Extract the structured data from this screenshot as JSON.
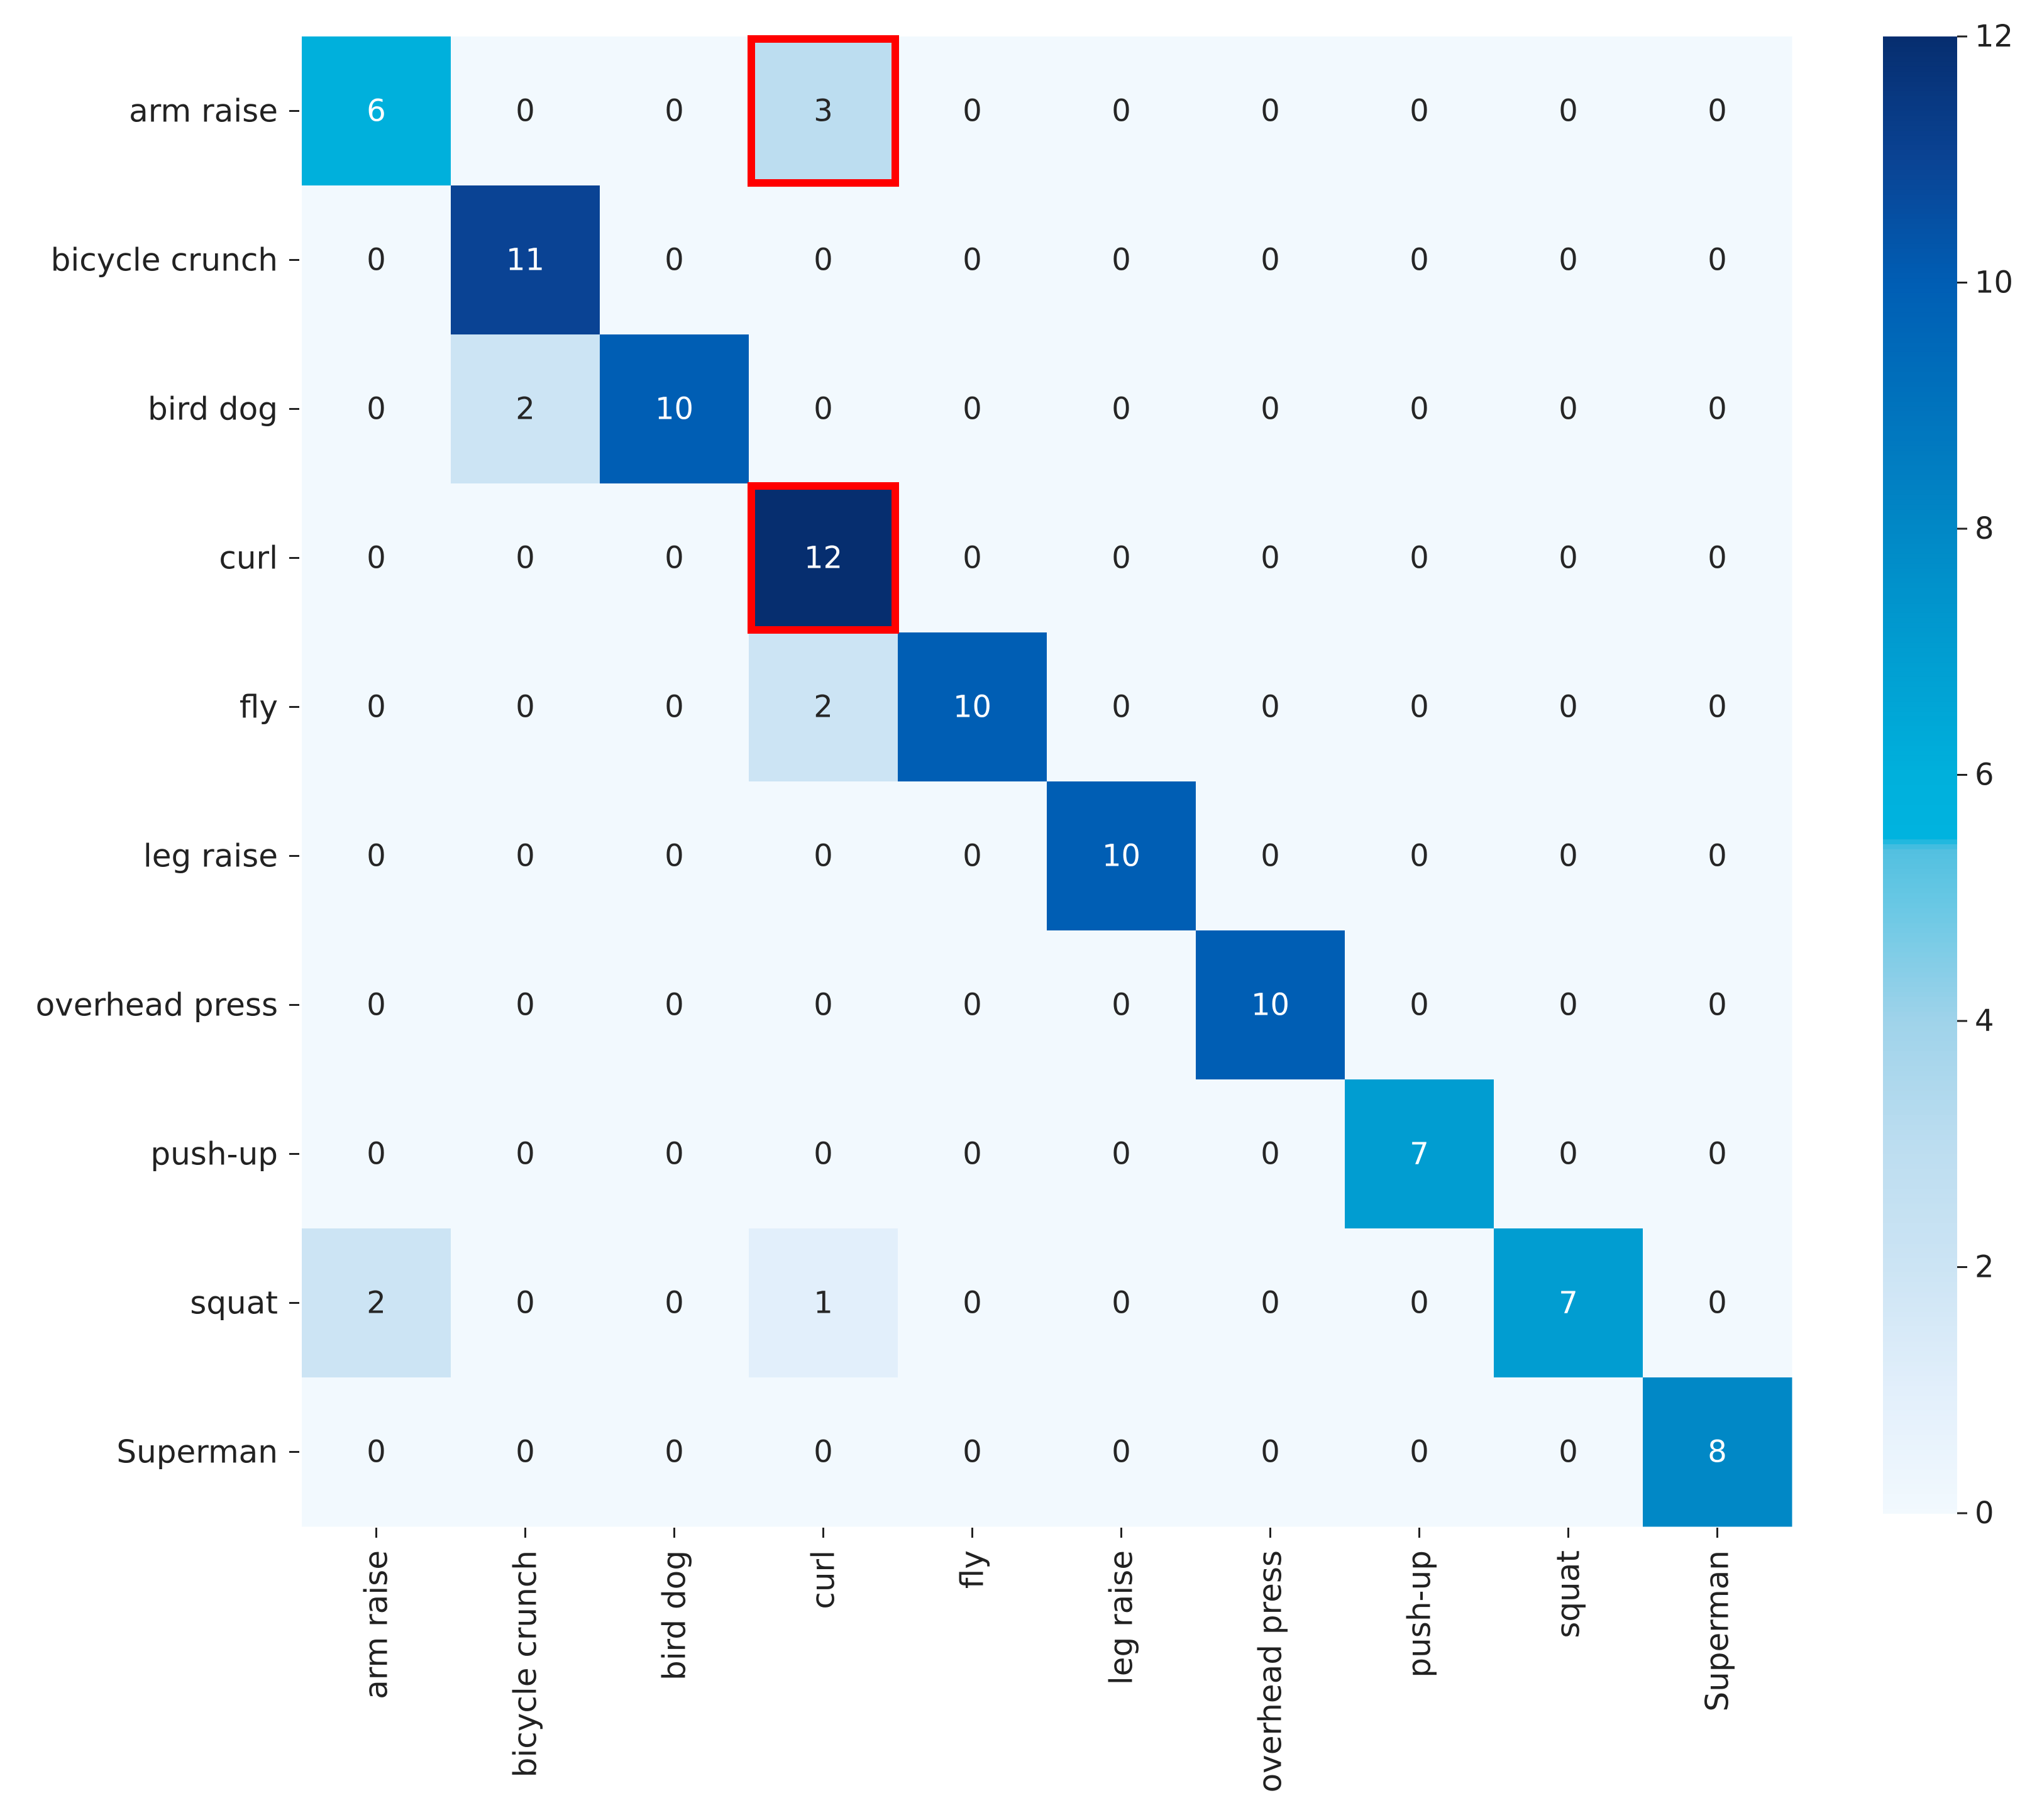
{
  "chart_data": {
    "type": "heatmap",
    "title": "",
    "xlabel": "",
    "ylabel": "",
    "row_labels": [
      "arm raise",
      "bicycle crunch",
      "bird dog",
      "curl",
      "fly",
      "leg raise",
      "overhead press",
      "push-up",
      "squat",
      "Superman"
    ],
    "col_labels": [
      "arm raise",
      "bicycle crunch",
      "bird dog",
      "curl",
      "fly",
      "leg raise",
      "overhead press",
      "push-up",
      "squat",
      "Superman"
    ],
    "values": [
      [
        6,
        0,
        0,
        3,
        0,
        0,
        0,
        0,
        0,
        0
      ],
      [
        0,
        11,
        0,
        0,
        0,
        0,
        0,
        0,
        0,
        0
      ],
      [
        0,
        2,
        10,
        0,
        0,
        0,
        0,
        0,
        0,
        0
      ],
      [
        0,
        0,
        0,
        12,
        0,
        0,
        0,
        0,
        0,
        0
      ],
      [
        0,
        0,
        0,
        2,
        10,
        0,
        0,
        0,
        0,
        0
      ],
      [
        0,
        0,
        0,
        0,
        0,
        10,
        0,
        0,
        0,
        0
      ],
      [
        0,
        0,
        0,
        0,
        0,
        0,
        10,
        0,
        0,
        0
      ],
      [
        0,
        0,
        0,
        0,
        0,
        0,
        0,
        7,
        0,
        0
      ],
      [
        2,
        0,
        0,
        1,
        0,
        0,
        0,
        0,
        7,
        0
      ],
      [
        0,
        0,
        0,
        0,
        0,
        0,
        0,
        0,
        0,
        8
      ]
    ],
    "colorbar": {
      "min": 0,
      "max": 12,
      "ticks": [
        0,
        2,
        4,
        6,
        8,
        10,
        12
      ]
    },
    "colormap": [
      [
        0,
        "#f2f9fe"
      ],
      [
        1,
        "#e2effb"
      ],
      [
        2,
        "#cce4f4"
      ],
      [
        3,
        "#bcddf0"
      ],
      [
        4,
        "#9fd3ea"
      ],
      [
        5,
        "#66c7e4"
      ],
      [
        5.4,
        "#52c0e0"
      ],
      [
        5.5,
        "#00b3df"
      ],
      [
        6,
        "#00b0dc"
      ],
      [
        7,
        "#019dd1"
      ],
      [
        8,
        "#0188c6"
      ],
      [
        10,
        "#005eb4"
      ],
      [
        11,
        "#0a4394"
      ],
      [
        12,
        "#062e6f"
      ]
    ],
    "highlighted_cells": [
      {
        "row": 0,
        "col": 3
      },
      {
        "row": 3,
        "col": 3
      }
    ],
    "highlight_color": "#ff0000",
    "grid": false
  }
}
